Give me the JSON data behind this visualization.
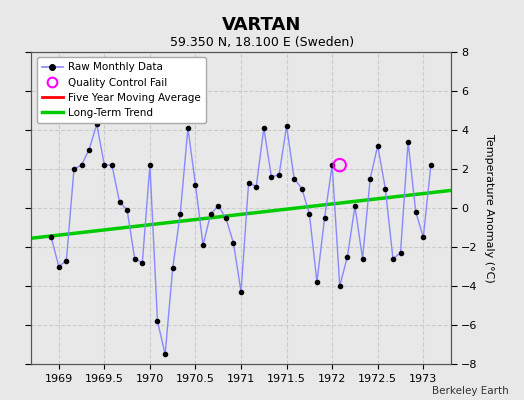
{
  "title": "VARTAN",
  "subtitle": "59.350 N, 18.100 E (Sweden)",
  "ylabel": "Temperature Anomaly (°C)",
  "credit": "Berkeley Earth",
  "xlim": [
    1968.7,
    1973.3
  ],
  "ylim": [
    -8,
    8
  ],
  "yticks": [
    -8,
    -6,
    -4,
    -2,
    0,
    2,
    4,
    6,
    8
  ],
  "xticks": [
    1969,
    1969.5,
    1970,
    1970.5,
    1971,
    1971.5,
    1972,
    1972.5,
    1973
  ],
  "bg_color": "#e8e8e8",
  "raw_x": [
    1968.917,
    1969.0,
    1969.083,
    1969.167,
    1969.25,
    1969.333,
    1969.417,
    1969.5,
    1969.583,
    1969.667,
    1969.75,
    1969.833,
    1969.917,
    1970.0,
    1970.083,
    1970.167,
    1970.25,
    1970.333,
    1970.417,
    1970.5,
    1970.583,
    1970.667,
    1970.75,
    1970.833,
    1970.917,
    1971.0,
    1971.083,
    1971.167,
    1971.25,
    1971.333,
    1971.417,
    1971.5,
    1971.583,
    1971.667,
    1971.75,
    1971.833,
    1971.917,
    1972.0,
    1972.083,
    1972.167,
    1972.25,
    1972.333,
    1972.417,
    1972.5,
    1972.583,
    1972.667,
    1972.75,
    1972.833,
    1972.917,
    1973.0,
    1973.083
  ],
  "raw_y": [
    -1.5,
    -3.0,
    -2.7,
    2.0,
    2.2,
    3.0,
    4.3,
    2.2,
    2.2,
    0.3,
    -0.1,
    -2.6,
    -2.8,
    2.2,
    -5.8,
    -7.5,
    -3.1,
    -0.3,
    4.1,
    1.2,
    -1.9,
    -0.3,
    0.1,
    -0.5,
    -1.8,
    -4.3,
    1.3,
    1.1,
    4.1,
    1.6,
    1.7,
    4.2,
    1.5,
    1.0,
    -0.3,
    -3.8,
    -0.5,
    2.2,
    -4.0,
    -2.5,
    0.1,
    -2.6,
    1.5,
    3.2,
    1.0,
    -2.6,
    -2.3,
    3.4,
    -0.2,
    -1.5,
    2.2
  ],
  "qc_fail_x": [
    1972.083
  ],
  "qc_fail_y": [
    2.2
  ],
  "trend_x": [
    1968.7,
    1973.3
  ],
  "trend_y": [
    -1.55,
    0.9
  ],
  "raw_line_color": "#8888ff",
  "dot_color": "#000000",
  "qc_color": "#ff00ff",
  "trend_color": "#00cc00",
  "ma_color": "#ff0000",
  "grid_color": "#cccccc",
  "legend_edge": "#aaaaaa"
}
